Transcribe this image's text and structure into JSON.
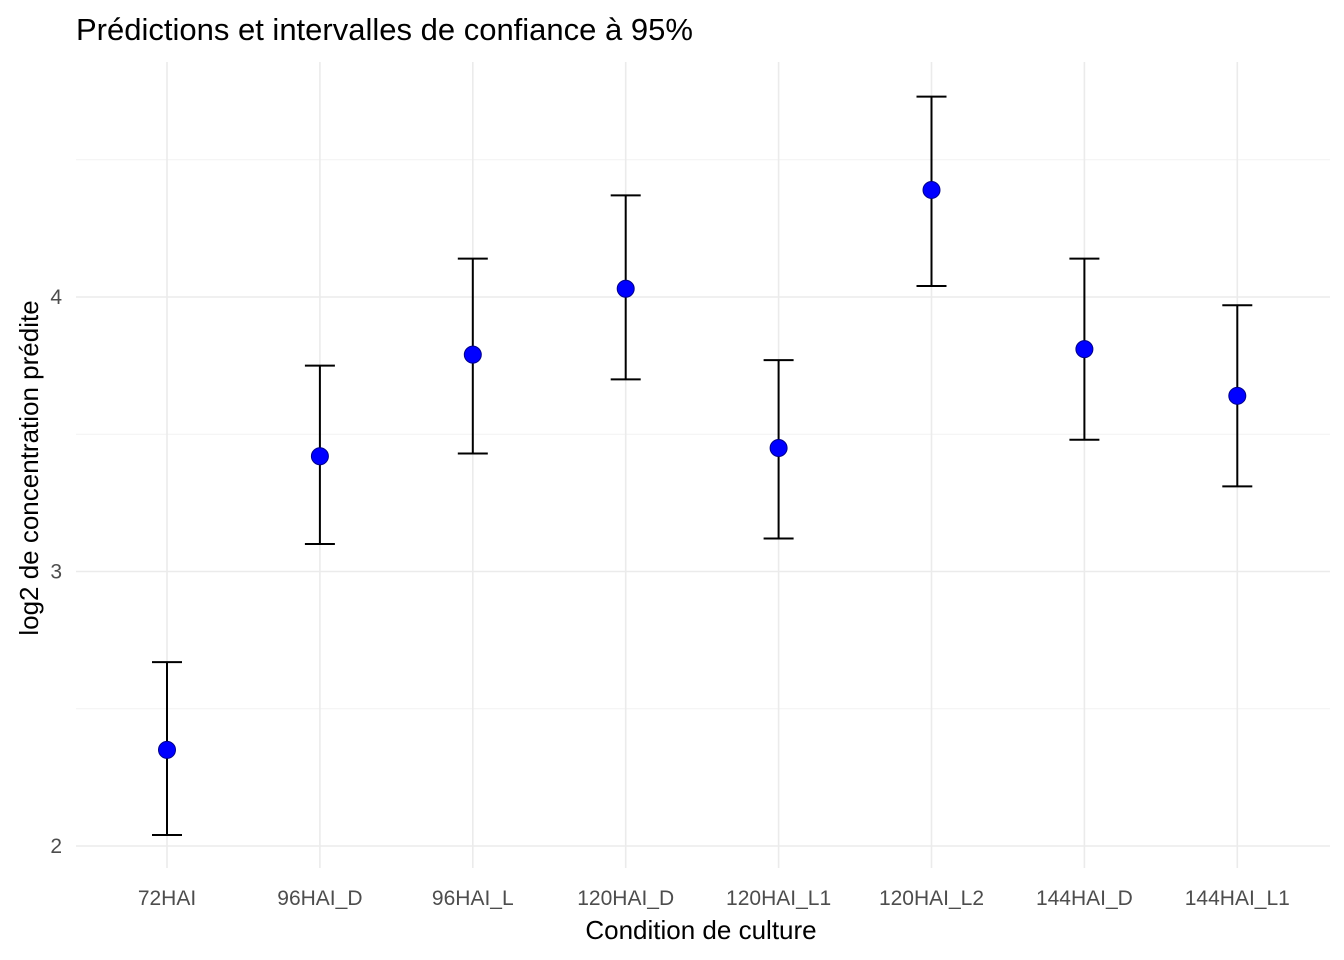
{
  "chart_data": {
    "type": "scatter",
    "title": "Prédictions et intervalles de confiance à 95%",
    "xlabel": "Condition de culture",
    "ylabel": "log2 de concentration prédite",
    "categories": [
      "72HAI",
      "96HAI_D",
      "96HAI_L",
      "120HAI_D",
      "120HAI_L1",
      "120HAI_L2",
      "144HAI_D",
      "144HAI_L1"
    ],
    "series": [
      {
        "values": [
          2.35,
          3.42,
          3.79,
          4.03,
          3.45,
          4.39,
          3.81,
          3.64
        ],
        "lower": [
          2.04,
          3.1,
          3.43,
          3.7,
          3.12,
          4.04,
          3.48,
          3.31
        ],
        "upper": [
          2.67,
          3.75,
          4.14,
          4.37,
          3.77,
          4.73,
          4.14,
          3.97
        ]
      }
    ],
    "y_ticks": [
      2,
      3,
      4
    ],
    "ylim": [
      1.9,
      4.85
    ],
    "grid": true,
    "legend": "none",
    "colors": {
      "point": "#0000ff",
      "errorbar": "#000000",
      "grid": "#ebebeb"
    }
  }
}
